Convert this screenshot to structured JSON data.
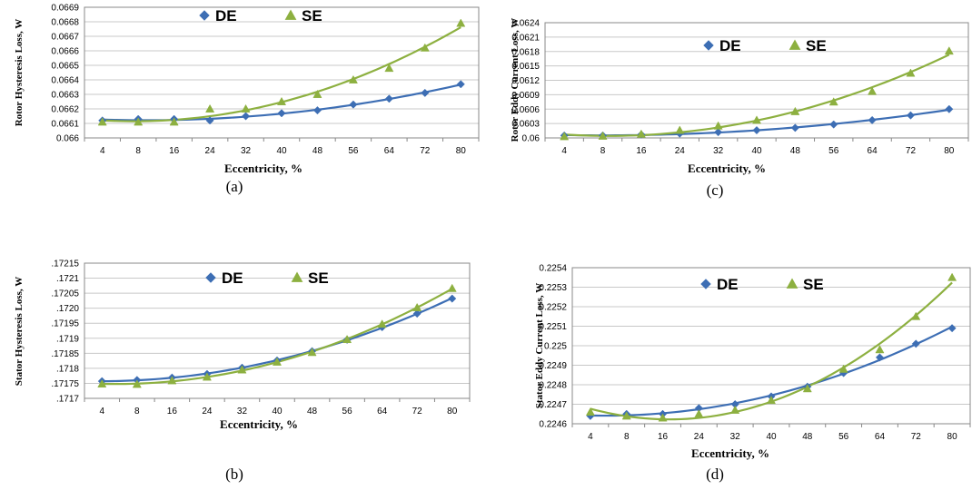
{
  "figure": {
    "colors": {
      "de": "#3d6eb4",
      "se": "#8db040",
      "grid": "#c8c8c8",
      "frame": "#888888"
    }
  },
  "chart_data": [
    {
      "id": "a",
      "type": "scatter",
      "caption": "(a)",
      "xlabel": "Eccentricity, %",
      "ylabel": "Rotor Hysteresis Loss, W",
      "categories": [
        "4",
        "8",
        "16",
        "24",
        "32",
        "40",
        "48",
        "56",
        "64",
        "72",
        "80"
      ],
      "yticks": [
        "0.066",
        "0.0661",
        "0.0662",
        "0.0663",
        "0.0664",
        "0.0665",
        "0.0666",
        "0.0667",
        "0.0668",
        "0.0669"
      ],
      "ylim": [
        0.066,
        0.0669
      ],
      "grid": true,
      "legend": "top",
      "series": [
        {
          "name": "DE",
          "marker": "diamond",
          "values": [
            0.06612,
            0.06613,
            0.06613,
            0.06612,
            0.06615,
            0.06617,
            0.06619,
            0.06623,
            0.06627,
            0.06631,
            0.06637
          ]
        },
        {
          "name": "SE",
          "marker": "triangle",
          "values": [
            0.06611,
            0.06611,
            0.06611,
            0.0662,
            0.0662,
            0.06625,
            0.0663,
            0.0664,
            0.06648,
            0.06662,
            0.06679
          ]
        }
      ]
    },
    {
      "id": "b",
      "type": "scatter",
      "caption": "(b)",
      "xlabel": "Eccentricity, %",
      "ylabel": "Stator Hysteresis Loss, W",
      "categories": [
        "4",
        "8",
        "16",
        "24",
        "32",
        "40",
        "48",
        "56",
        "64",
        "72",
        "80"
      ],
      "yticks": [
        ".1717",
        ".17175",
        ".1718",
        ".17185",
        ".1719",
        ".17195",
        ".1720",
        ".17205",
        ".1721",
        ".17215"
      ],
      "ylim": [
        0.1717,
        0.17215
      ],
      "grid": true,
      "legend": "top",
      "series": [
        {
          "name": "DE",
          "marker": "diamond",
          "values": [
            0.171757,
            0.171761,
            0.171769,
            0.171781,
            0.171802,
            0.171826,
            0.171857,
            0.171895,
            0.171937,
            0.171982,
            0.172032
          ]
        },
        {
          "name": "SE",
          "marker": "triangle",
          "values": [
            0.171748,
            0.171747,
            0.171759,
            0.171771,
            0.171795,
            0.171821,
            0.171853,
            0.171896,
            0.171947,
            0.172002,
            0.172066
          ]
        }
      ]
    },
    {
      "id": "c",
      "type": "scatter",
      "caption": "(c)",
      "xlabel": "Eccentricity, %",
      "ylabel": "Rotor Eddy Current Loss, W",
      "categories": [
        "4",
        "8",
        "16",
        "24",
        "32",
        "40",
        "48",
        "56",
        "64",
        "72",
        "80"
      ],
      "yticks": [
        "0.06",
        "0.0603",
        "0.0606",
        "0.0609",
        "0.0612",
        "0.0615",
        "0.0618",
        "0.0621",
        "0.0624"
      ],
      "ylim": [
        0.06,
        0.0624
      ],
      "grid": true,
      "legend": "top",
      "series": [
        {
          "name": "DE",
          "marker": "diamond",
          "values": [
            0.06005,
            0.06005,
            0.06007,
            0.06009,
            0.06012,
            0.06016,
            0.06021,
            0.06028,
            0.06037,
            0.06047,
            0.0606
          ]
        },
        {
          "name": "SE",
          "marker": "triangle",
          "values": [
            0.06003,
            0.06004,
            0.06008,
            0.06016,
            0.06025,
            0.06037,
            0.06055,
            0.06075,
            0.06097,
            0.06135,
            0.06181
          ]
        }
      ]
    },
    {
      "id": "d",
      "type": "scatter",
      "caption": "(d)",
      "xlabel": "Eccentricity, %",
      "ylabel": "Stator Eddy Current Loss, W",
      "categories": [
        "4",
        "8",
        "16",
        "24",
        "32",
        "40",
        "48",
        "56",
        "64",
        "72",
        "80"
      ],
      "yticks": [
        "0.2246",
        "0.2247",
        "0.2248",
        "0.2249",
        "0.225",
        "0.2251",
        "0.2252",
        "0.2253",
        "0.2254"
      ],
      "ylim": [
        0.2246,
        0.2254
      ],
      "grid": true,
      "legend": "top",
      "series": [
        {
          "name": "DE",
          "marker": "diamond",
          "values": [
            0.22464,
            0.22465,
            0.22465,
            0.22468,
            0.2247,
            0.22474,
            0.22479,
            0.22486,
            0.22494,
            0.22501,
            0.22509
          ]
        },
        {
          "name": "SE",
          "marker": "triangle",
          "values": [
            0.22466,
            0.22464,
            0.22463,
            0.22465,
            0.22467,
            0.22472,
            0.22478,
            0.22488,
            0.22498,
            0.22515,
            0.22535
          ]
        }
      ]
    }
  ]
}
